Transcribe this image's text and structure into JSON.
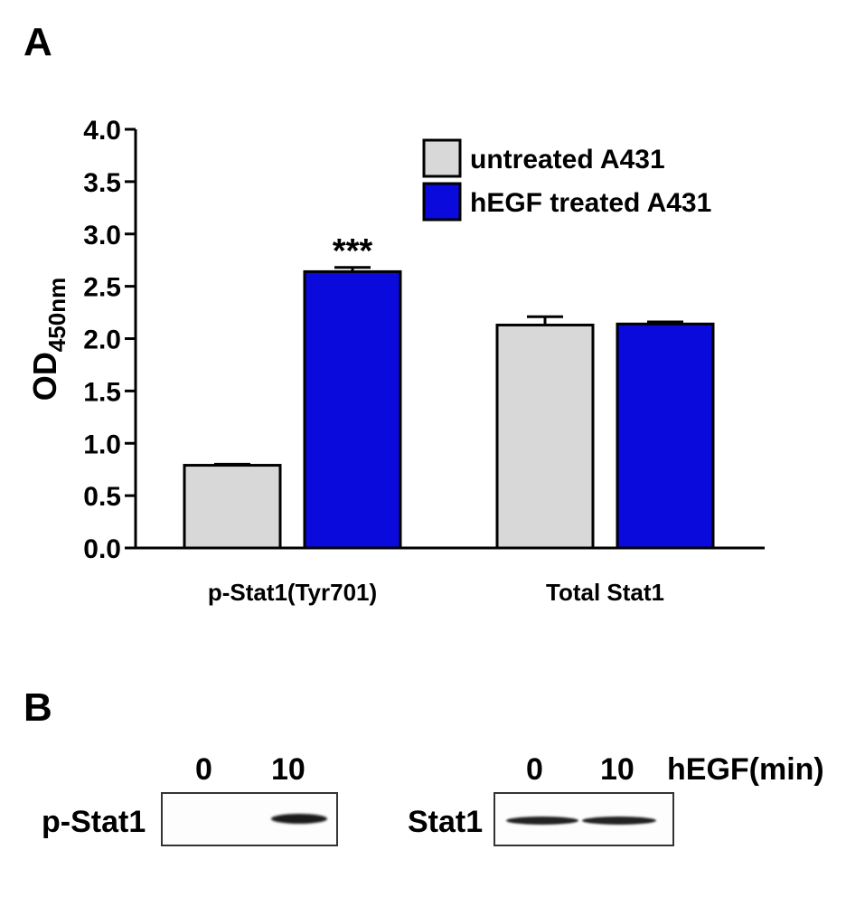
{
  "panel_labels": {
    "a": "A",
    "b": "B"
  },
  "chart_data": {
    "type": "bar",
    "title": "",
    "ylabel_main": "OD",
    "ylabel_sub": "450nm",
    "xlabel": "",
    "ylim": [
      0,
      4.0
    ],
    "yticks": [
      "0.0",
      "0.5",
      "1.0",
      "1.5",
      "2.0",
      "2.5",
      "3.0",
      "3.5",
      "4.0"
    ],
    "categories": [
      "p-Stat1(Tyr701)",
      "Total Stat1"
    ],
    "series": [
      {
        "name": "untreated A431",
        "color": "#d8d8d8",
        "values": [
          0.79,
          2.13
        ],
        "errors": [
          0.01,
          0.08
        ]
      },
      {
        "name": "hEGF treated A431",
        "color": "#0a0adc",
        "values": [
          2.64,
          2.14
        ],
        "errors": [
          0.04,
          0.02
        ]
      }
    ],
    "annotations": [
      {
        "category": 0,
        "series": 1,
        "text": "***"
      }
    ],
    "legend_position": "top-right",
    "grid": false
  },
  "blot": {
    "left_panel": {
      "label": "p-Stat1",
      "lanes": [
        "0",
        "10"
      ]
    },
    "right_panel": {
      "label": "Stat1",
      "lanes": [
        "0",
        "10"
      ]
    },
    "time_label": "hEGF(min)"
  }
}
